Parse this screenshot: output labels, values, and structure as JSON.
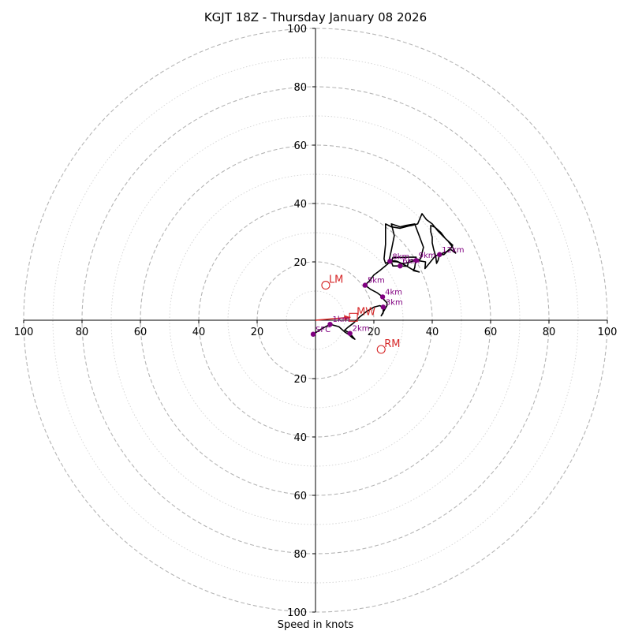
{
  "chart_data": {
    "type": "hodograph",
    "title": "KGJT 18Z - Thursday January 08 2026",
    "xlabel": "Speed in knots",
    "units": "knots",
    "range": [
      -100,
      100
    ],
    "ring_interval_major": 20,
    "ring_interval_minor": 10,
    "ticks": {
      "x": [
        {
          "value": -100,
          "label": "100"
        },
        {
          "value": -80,
          "label": "80"
        },
        {
          "value": -60,
          "label": "60"
        },
        {
          "value": -40,
          "label": "40"
        },
        {
          "value": -20,
          "label": "20"
        },
        {
          "value": 20,
          "label": "20"
        },
        {
          "value": 40,
          "label": "40"
        },
        {
          "value": 60,
          "label": "60"
        },
        {
          "value": 80,
          "label": "80"
        },
        {
          "value": 100,
          "label": "100"
        }
      ],
      "y": [
        {
          "value": 100,
          "label": "100"
        },
        {
          "value": 80,
          "label": "80"
        },
        {
          "value": 60,
          "label": "60"
        },
        {
          "value": 40,
          "label": "40"
        },
        {
          "value": 20,
          "label": "20"
        },
        {
          "value": -20,
          "label": "20"
        },
        {
          "value": -40,
          "label": "40"
        },
        {
          "value": -60,
          "label": "60"
        },
        {
          "value": -80,
          "label": "80"
        },
        {
          "value": -100,
          "label": "100"
        }
      ]
    },
    "trace": [
      [
        -0.8,
        -4.8
      ],
      [
        2,
        -3
      ],
      [
        5,
        -1.4
      ],
      [
        8,
        -2.2
      ],
      [
        10,
        -4
      ],
      [
        11.5,
        -5
      ],
      [
        12.6,
        -6
      ],
      [
        13.5,
        -6.5
      ],
      [
        11.8,
        -4.5
      ],
      [
        10,
        -3.4
      ],
      [
        11,
        -2.5
      ],
      [
        13,
        -1
      ],
      [
        15,
        1
      ],
      [
        17.5,
        3
      ],
      [
        20,
        4.5
      ],
      [
        22,
        5
      ],
      [
        23.2,
        4.5
      ],
      [
        23.2,
        2.5
      ],
      [
        22.5,
        1.5
      ],
      [
        23.5,
        3.3
      ],
      [
        24.5,
        5
      ],
      [
        24.5,
        6
      ],
      [
        23.5,
        7
      ],
      [
        23,
        8
      ],
      [
        21,
        9.5
      ],
      [
        19,
        10.5
      ],
      [
        17,
        12
      ],
      [
        18.5,
        13.5
      ],
      [
        20,
        15.5
      ],
      [
        22,
        17
      ],
      [
        25,
        19.5
      ],
      [
        26,
        24
      ],
      [
        27,
        29
      ],
      [
        26,
        33
      ],
      [
        29,
        32
      ],
      [
        31,
        32.5
      ],
      [
        34,
        33
      ],
      [
        35.5,
        29
      ],
      [
        37,
        25
      ],
      [
        36,
        21
      ],
      [
        32,
        19.8
      ],
      [
        30.5,
        19.5
      ],
      [
        29.5,
        19.5
      ],
      [
        28,
        20
      ],
      [
        25.5,
        20.2
      ],
      [
        24,
        19.5
      ],
      [
        23.5,
        21
      ],
      [
        24,
        26
      ],
      [
        24,
        33
      ],
      [
        26,
        32
      ],
      [
        29,
        31.5
      ],
      [
        32,
        32.3
      ],
      [
        33,
        32.5
      ],
      [
        35,
        33
      ],
      [
        36.5,
        36.5
      ],
      [
        38,
        34.5
      ],
      [
        40,
        33
      ],
      [
        42,
        30.5
      ],
      [
        44,
        28.5
      ],
      [
        45.5,
        27
      ],
      [
        47,
        25
      ],
      [
        48,
        23
      ],
      [
        46,
        24.5
      ],
      [
        44,
        22.5
      ],
      [
        42.5,
        22.5
      ],
      [
        42,
        20.5
      ],
      [
        41.5,
        19.5
      ],
      [
        41.2,
        22
      ],
      [
        40.5,
        24.2
      ],
      [
        40,
        26.5
      ],
      [
        40,
        28.5
      ],
      [
        39.5,
        30.3
      ],
      [
        39.5,
        32.5
      ],
      [
        41,
        31.8
      ],
      [
        43,
        30
      ],
      [
        44.5,
        28
      ],
      [
        47,
        25.7
      ],
      [
        46,
        24
      ],
      [
        43,
        22.7
      ],
      [
        41,
        22
      ],
      [
        39,
        19.5
      ],
      [
        37.5,
        17.7
      ],
      [
        37.7,
        20
      ],
      [
        36,
        20.3
      ],
      [
        34,
        20.5
      ],
      [
        33,
        20.7
      ],
      [
        32,
        20.5
      ],
      [
        31.5,
        18.5
      ],
      [
        29,
        18.6
      ],
      [
        26.5,
        18.6
      ],
      [
        26,
        20
      ],
      [
        26.5,
        21.5
      ],
      [
        29,
        21.5
      ],
      [
        32,
        21.6
      ],
      [
        34.5,
        21.6
      ],
      [
        34,
        18
      ],
      [
        33.5,
        17
      ],
      [
        35.5,
        16.5
      ],
      [
        33,
        17.5
      ],
      [
        31,
        18.7
      ],
      [
        29.5,
        19.5
      ],
      [
        28,
        20.2
      ],
      [
        26,
        20.5
      ],
      [
        25.5,
        20.2
      ]
    ],
    "height_markers": [
      {
        "label": "SFC",
        "u": -0.8,
        "v": -4.8
      },
      {
        "label": "1km",
        "u": 5,
        "v": -1.4
      },
      {
        "label": "2km",
        "u": 11.8,
        "v": -4.5
      },
      {
        "label": "3km",
        "u": 23.2,
        "v": 4.5
      },
      {
        "label": "4km",
        "u": 23,
        "v": 8
      },
      {
        "label": "5km",
        "u": 17,
        "v": 12
      },
      {
        "label": "6km",
        "u": 29,
        "v": 18.6
      },
      {
        "label": "8km",
        "u": 25.5,
        "v": 20.2
      },
      {
        "label": "9km",
        "u": 34.5,
        "v": 20.5
      },
      {
        "label": "12km",
        "u": 42.5,
        "v": 22.5
      }
    ],
    "motion_markers": [
      {
        "label": "LM",
        "u": 3.5,
        "v": 12
      },
      {
        "label": "RM",
        "u": 22.5,
        "v": -10
      },
      {
        "label": "MW",
        "u": 13,
        "v": 1
      }
    ],
    "mean_wind_vector": {
      "from": [
        0,
        0
      ],
      "to": [
        12,
        1
      ]
    },
    "colors": {
      "trace": "#000000",
      "height_marker": "#800080",
      "storm_motion": "#d62728",
      "grid": "#b5b5b5",
      "axis": "#000000"
    }
  }
}
